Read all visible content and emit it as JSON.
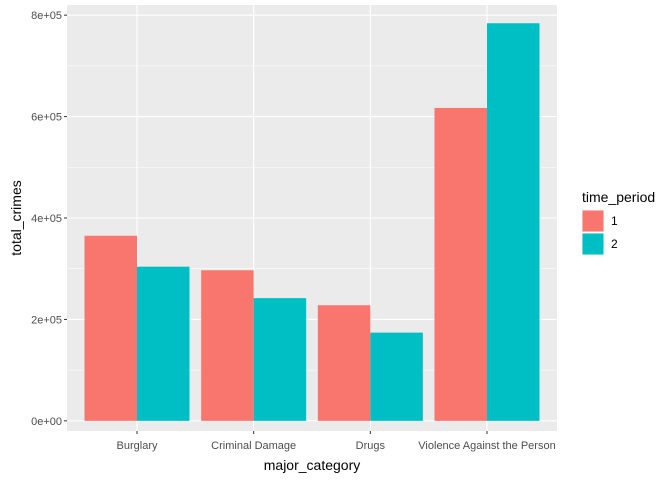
{
  "chart_data": {
    "type": "bar",
    "xlabel": "major_category",
    "ylabel": "total_crimes",
    "categories": [
      "Burglary",
      "Criminal Damage",
      "Drugs",
      "Violence Against the Person"
    ],
    "series": [
      {
        "name": "1",
        "values": [
          365000,
          297000,
          228000,
          617000
        ],
        "color": "#F8766D"
      },
      {
        "name": "2",
        "values": [
          304000,
          242000,
          174000,
          784000
        ],
        "color": "#00BFC4"
      }
    ],
    "ylim": [
      -20000,
      820000
    ],
    "yticks": [
      0,
      200000,
      400000,
      600000,
      800000
    ],
    "ytick_labels": [
      "0e+00",
      "2e+05",
      "4e+05",
      "6e+05",
      "8e+05"
    ],
    "grid": true,
    "panel_background": "#EBEBEB",
    "legend": {
      "title": "time_period",
      "placement": "right"
    }
  }
}
